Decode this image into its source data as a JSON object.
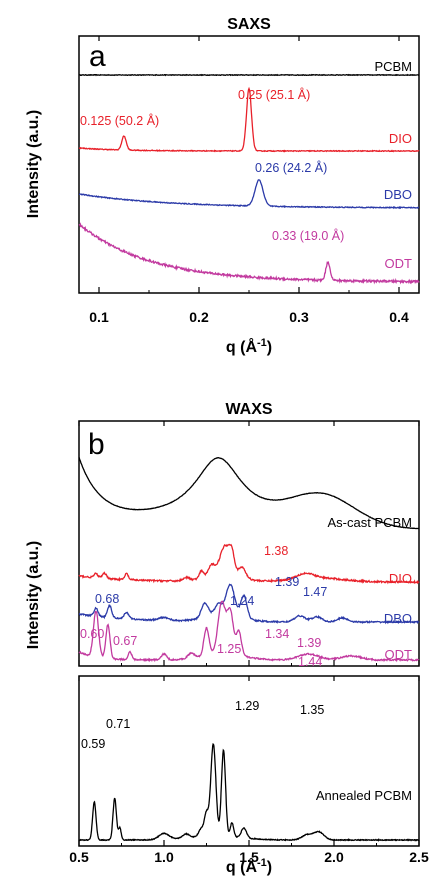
{
  "chart_data": [
    {
      "type": "line",
      "title": "SAXS",
      "panel_letter": "a",
      "xlabel": "q (Å",
      "xlabel_sup": "-1",
      "xlabel_tail": ")",
      "ylabel": "Intensity (a.u.)",
      "xlim": [
        0.08,
        0.42
      ],
      "xticks": [
        0.1,
        0.2,
        0.3,
        0.4
      ],
      "xtick_labels": [
        "0.1",
        "0.2",
        "0.3",
        "0.4"
      ],
      "series": [
        {
          "name": "PCBM",
          "color": "#000000"
        },
        {
          "name": "DIO",
          "color": "#e8212a"
        },
        {
          "name": "DBO",
          "color": "#2b3aa8"
        },
        {
          "name": "ODT",
          "color": "#c23a9f"
        }
      ],
      "annotations": [
        {
          "text": "0.25 (25.1 Å)",
          "x": 0.25,
          "series": "DIO"
        },
        {
          "text": "0.125 (50.2 Å)",
          "x": 0.125,
          "series": "DIO"
        },
        {
          "text": "0.26 (24.2 Å)",
          "x": 0.26,
          "series": "DBO"
        },
        {
          "text": "0.33 (19.0 Å)",
          "x": 0.33,
          "series": "ODT"
        }
      ]
    },
    {
      "type": "line",
      "title": "WAXS",
      "panel_letter": "b",
      "xlabel": "q (Å",
      "xlabel_sup": "-1",
      "xlabel_tail": ")",
      "ylabel": "Intensity (a.u.)",
      "xlim": [
        0.5,
        2.5
      ],
      "xticks": [
        0.5,
        1.0,
        1.5,
        2.0,
        2.5
      ],
      "xtick_labels": [
        "0.5",
        "1.0",
        "1.5",
        "2.0",
        "2.5"
      ],
      "series": [
        {
          "name": "As-cast PCBM",
          "color": "#000000"
        },
        {
          "name": "DIO",
          "color": "#e8212a"
        },
        {
          "name": "DBO",
          "color": "#2b3aa8"
        },
        {
          "name": "ODT",
          "color": "#c23a9f"
        },
        {
          "name": "Annealed PCBM",
          "color": "#000000"
        }
      ],
      "annotations": [
        {
          "text": "1.38",
          "series": "DIO"
        },
        {
          "text": "0.68",
          "series": "DBO"
        },
        {
          "text": "1.24",
          "series": "DBO"
        },
        {
          "text": "1.39",
          "series": "DBO"
        },
        {
          "text": "1.47",
          "series": "DBO"
        },
        {
          "text": "0.60",
          "series": "ODT"
        },
        {
          "text": "0.67",
          "series": "ODT"
        },
        {
          "text": "1.25",
          "series": "ODT"
        },
        {
          "text": "1.34",
          "series": "ODT"
        },
        {
          "text": "1.39",
          "series": "ODT"
        },
        {
          "text": "1.44",
          "series": "ODT"
        },
        {
          "text": "0.59",
          "series": "Annealed PCBM"
        },
        {
          "text": "0.71",
          "series": "Annealed PCBM"
        },
        {
          "text": "1.29",
          "series": "Annealed PCBM"
        },
        {
          "text": "1.35",
          "series": "Annealed PCBM"
        }
      ]
    }
  ]
}
